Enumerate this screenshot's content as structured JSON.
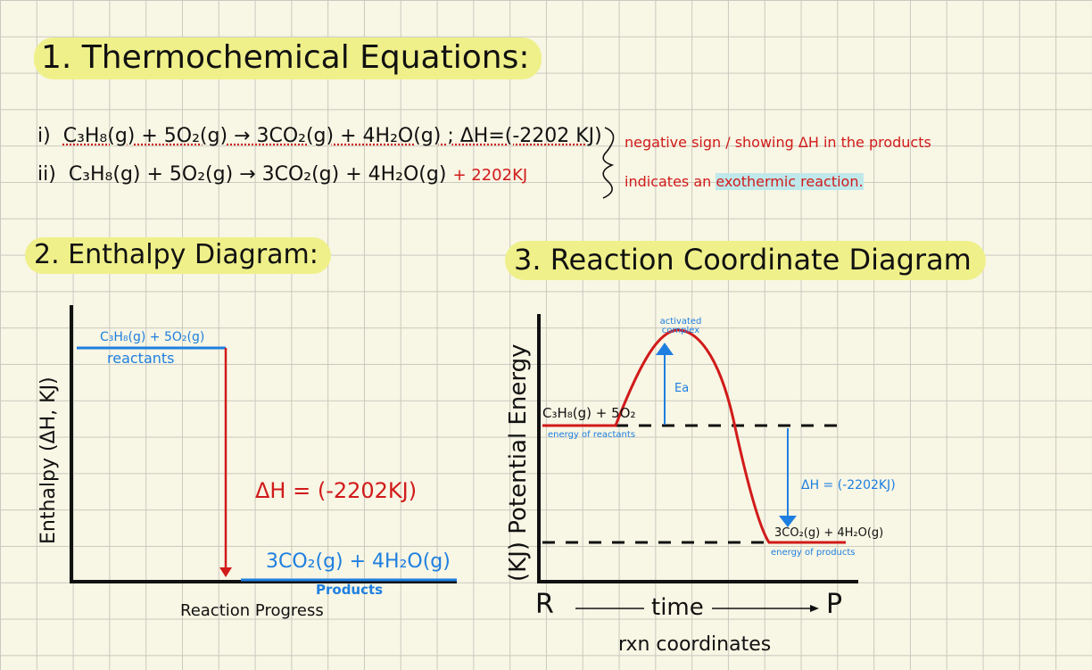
{
  "section1": {
    "title": "1. Thermochemical Equations:",
    "eq1": {
      "label": "i)",
      "text": "C₃H₈(g) + 5O₂(g) → 3CO₂(g) + 4H₂O(g) ; ΔH=(-2202 KJ)"
    },
    "eq2": {
      "label": "ii)",
      "text_main": "C₃H₈(g) + 5O₂(g) → 3CO₂(g) + 4H₂O(g)",
      "text_red": "+ 2202KJ"
    },
    "note_line1": "negative sign / showing ΔH in the products",
    "note_line2_pre": "indicates an ",
    "note_line2_hl": "exothermic reaction."
  },
  "section2": {
    "title": "2. Enthalpy Diagram:",
    "y_label": "Enthalpy (ΔH, KJ)",
    "x_label": "Reaction Progress",
    "reactants_formula": "C₃H₈(g) + 5O₂(g)",
    "reactants_label": "reactants",
    "products_formula": "3CO₂(g) + 4H₂O(g)",
    "products_label": "Products",
    "delta_h": "ΔH = (-2202KJ)"
  },
  "section3": {
    "title": "3. Reaction Coordinate Diagram",
    "y_label": "(KJ)  Potential Energy",
    "x_start": "R",
    "x_mid": "time",
    "x_end": "P",
    "x_caption": "rxn coordinates",
    "activated_complex": "activated complex",
    "ea_label": "Ea",
    "reactants_formula": "C₃H₈(g) + 5O₂",
    "reactants_caption": "energy of reactants",
    "products_formula": "3CO₂(g) + 4H₂O(g)",
    "products_caption": "energy of products",
    "delta_h": "ΔH = (-2202KJ)"
  },
  "colors": {
    "red": "#d11a1a",
    "blue": "#1e7fe0",
    "highlight_yellow": "#eff08a",
    "highlight_cyan": "#bfe8ea"
  }
}
